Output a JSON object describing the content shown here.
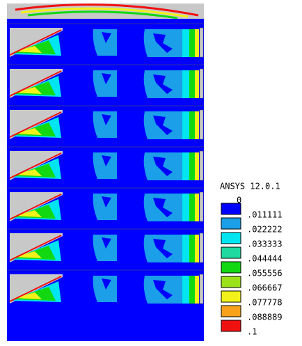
{
  "title": "ANSYS 12.0.1",
  "legend": {
    "levels": [
      "0",
      ".011111",
      ".022222",
      ".033333",
      ".044444",
      ".055556",
      ".066667",
      ".077778",
      ".088889",
      ".1"
    ],
    "colors": [
      "#0000ff",
      "#1a9fe8",
      "#00e5ef",
      "#1fd9a0",
      "#12d812",
      "#9be21a",
      "#f2f21a",
      "#f7a21a",
      "#ef1010"
    ]
  }
}
